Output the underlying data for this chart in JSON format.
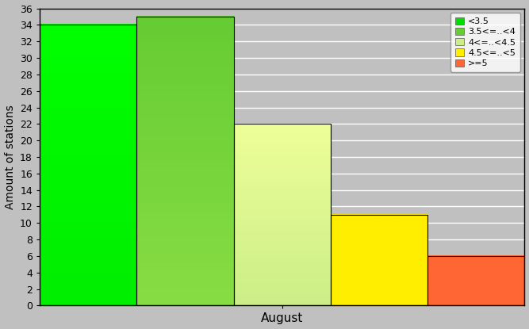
{
  "bars": [
    {
      "label": "<3.5",
      "value": 34,
      "color_top": "#00ff00",
      "color_bottom": "#00ee00"
    },
    {
      "label": "3.5<=..<4",
      "value": 35,
      "color_top": "#66cc33",
      "color_bottom": "#88dd44"
    },
    {
      "label": "4<=..<4.5",
      "value": 22,
      "color_top": "#eeff99",
      "color_bottom": "#ccee88"
    },
    {
      "label": "4.5<=..<5",
      "value": 11,
      "color_top": "#ffee00",
      "color_bottom": "#ffee00"
    },
    {
      "label": ">=5",
      "value": 6,
      "color_top": "#ff6633",
      "color_bottom": "#ff6633"
    }
  ],
  "legend_colors": [
    "#00dd00",
    "#66cc33",
    "#ccee88",
    "#ffee00",
    "#ff6633"
  ],
  "ylabel": "Amount of stations",
  "xlabel": "August",
  "ylim": [
    0,
    36
  ],
  "yticks": [
    0,
    2,
    4,
    6,
    8,
    10,
    12,
    14,
    16,
    18,
    20,
    22,
    24,
    26,
    28,
    30,
    32,
    34,
    36
  ],
  "background_color": "#c0c0c0",
  "grid_color": "#ffffff",
  "bar_edge_color": "#000000",
  "n_bars": 5
}
